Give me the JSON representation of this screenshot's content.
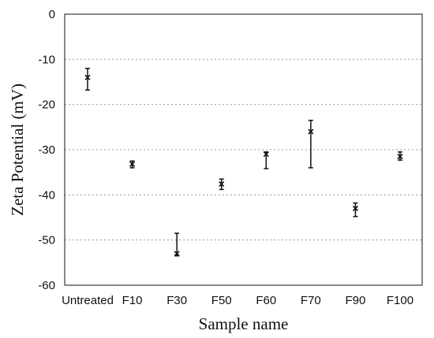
{
  "chart_data": {
    "type": "scatter",
    "title": "",
    "xlabel": "Sample name",
    "ylabel": "Zeta Potential (mV)",
    "ylim": [
      -60,
      0
    ],
    "yticks": [
      0,
      -10,
      -20,
      -30,
      -40,
      -50,
      -60
    ],
    "categories": [
      "Untreated",
      "F10",
      "F30",
      "F50",
      "F60",
      "F70",
      "F90",
      "F100"
    ],
    "series": [
      {
        "values": [
          -14,
          -33.2,
          -53,
          -37.6,
          -31,
          -26,
          -43,
          -31.5
        ],
        "err_low": [
          -16.8,
          -34,
          -53.5,
          -38.8,
          -34.2,
          -34,
          -44.8,
          -32.3
        ],
        "err_high": [
          -12,
          -32.5,
          -48.5,
          -36.5,
          -30.5,
          -23.5,
          -41.8,
          -30.5
        ]
      }
    ],
    "grid": true,
    "legend": "none"
  }
}
